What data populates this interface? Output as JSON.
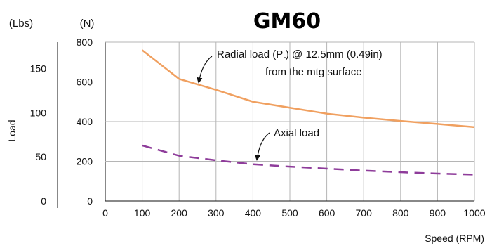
{
  "chart_data": {
    "type": "line",
    "title": "GM60",
    "xlabel": "Speed (RPM)",
    "ylabel": "Load",
    "y_unit_left": "(Lbs)",
    "y_unit_right": "(N)",
    "x_ticks": [
      0,
      100,
      200,
      300,
      400,
      500,
      600,
      700,
      800,
      900,
      1000
    ],
    "y_ticks_n": [
      0,
      200,
      400,
      600,
      800
    ],
    "y_ticks_lbs": [
      0,
      50,
      100,
      150
    ],
    "xlim": [
      0,
      1000
    ],
    "ylim": [
      0,
      800
    ],
    "grid": true,
    "x": [
      100,
      200,
      300,
      400,
      500,
      600,
      700,
      800,
      900,
      1000
    ],
    "series": [
      {
        "name": "Radial load",
        "color": "#f0a060",
        "style": "solid",
        "values": [
          760,
          615,
          560,
          500,
          470,
          440,
          420,
          403,
          388,
          372
        ]
      },
      {
        "name": "Axial load",
        "color": "#8e3c9a",
        "style": "dashed",
        "values": [
          280,
          228,
          205,
          185,
          173,
          163,
          153,
          145,
          138,
          133
        ]
      }
    ],
    "annotations": {
      "radial_pre": "Radial load (P",
      "radial_sub": "r",
      "radial_post": ") @ 12.5mm (0.49in)",
      "radial_line2": "from the mtg surface",
      "axial": "Axial load"
    }
  }
}
